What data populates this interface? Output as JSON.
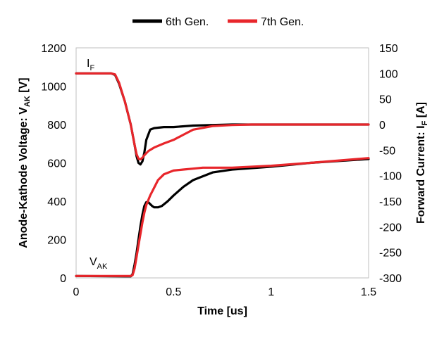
{
  "chart_data": {
    "type": "line",
    "xlabel": "Time [us]",
    "ylabel_left": {
      "pre": "Anode-Kathode  Voltage: V",
      "sub": "AK",
      "post": " [V]"
    },
    "ylabel_right": {
      "pre": "Forward Current: I",
      "sub": "F",
      "post": " [A]"
    },
    "xlim": [
      0,
      1.5
    ],
    "ylim_left": [
      0,
      1200
    ],
    "ylim_right": [
      -300,
      150
    ],
    "xticks": [
      0,
      0.5,
      1,
      1.5
    ],
    "xtick_labels": [
      "0",
      "0.5",
      "1",
      "1.5"
    ],
    "yticks_left": [
      0,
      200,
      400,
      600,
      800,
      1000,
      1200
    ],
    "yticks_left_labels": [
      "0",
      "200",
      "400",
      "600",
      "800",
      "1000",
      "1200"
    ],
    "yticks_right": [
      -300,
      -250,
      -200,
      -150,
      -100,
      -50,
      0,
      50,
      100,
      150
    ],
    "yticks_right_labels": [
      "-300",
      "-250",
      "-200",
      "-150",
      "-100",
      "-50",
      "0",
      "50",
      "100",
      "150"
    ],
    "legend": {
      "position": "top",
      "entries": [
        "6th Gen.",
        "7th Gen."
      ]
    },
    "annotations": {
      "current": {
        "main": "I",
        "sub": "F"
      },
      "voltage": {
        "main": "V",
        "sub": "AK"
      }
    },
    "grid": false,
    "series": [
      {
        "name": "6th Gen.",
        "color": "#000000",
        "axis": "right",
        "x": [
          0,
          0.18,
          0.2,
          0.22,
          0.25,
          0.28,
          0.3,
          0.31,
          0.32,
          0.33,
          0.34,
          0.35,
          0.36,
          0.38,
          0.4,
          0.45,
          0.5,
          0.6,
          0.7,
          0.8,
          0.9,
          1.0,
          1.2,
          1.5
        ],
        "y": [
          100,
          100,
          97,
          80,
          45,
          0,
          -40,
          -62,
          -75,
          -78,
          -72,
          -55,
          -30,
          -10,
          -7,
          -5,
          -5,
          -2,
          -1,
          0,
          0,
          0,
          0,
          0
        ]
      },
      {
        "name": "7th Gen.",
        "color": "#e8262b",
        "axis": "right",
        "x": [
          0,
          0.18,
          0.2,
          0.22,
          0.25,
          0.28,
          0.3,
          0.31,
          0.32,
          0.33,
          0.34,
          0.35,
          0.37,
          0.4,
          0.45,
          0.5,
          0.55,
          0.6,
          0.7,
          0.8,
          0.9,
          1.0,
          1.2,
          1.5
        ],
        "y": [
          100,
          100,
          98,
          82,
          45,
          0,
          -40,
          -58,
          -67,
          -68,
          -65,
          -60,
          -52,
          -45,
          -37,
          -30,
          -20,
          -10,
          -3,
          -1,
          0,
          0,
          0,
          0
        ]
      },
      {
        "name": "6th Gen.",
        "color": "#000000",
        "axis": "left",
        "x": [
          0,
          0.25,
          0.28,
          0.29,
          0.3,
          0.31,
          0.32,
          0.33,
          0.34,
          0.35,
          0.36,
          0.37,
          0.38,
          0.39,
          0.4,
          0.42,
          0.44,
          0.47,
          0.5,
          0.55,
          0.6,
          0.7,
          0.8,
          1.0,
          1.2,
          1.5
        ],
        "y": [
          10,
          8,
          8,
          20,
          70,
          130,
          200,
          270,
          330,
          375,
          395,
          395,
          385,
          375,
          368,
          368,
          375,
          400,
          430,
          475,
          510,
          550,
          565,
          580,
          600,
          620
        ]
      },
      {
        "name": "7th Gen.",
        "color": "#e8262b",
        "axis": "left",
        "x": [
          0,
          0.25,
          0.28,
          0.29,
          0.3,
          0.31,
          0.32,
          0.33,
          0.34,
          0.35,
          0.36,
          0.38,
          0.4,
          0.42,
          0.45,
          0.5,
          0.55,
          0.6,
          0.65,
          0.7,
          0.8,
          1.0,
          1.2,
          1.5
        ],
        "y": [
          10,
          10,
          10,
          15,
          50,
          110,
          170,
          230,
          290,
          340,
          380,
          430,
          470,
          510,
          540,
          560,
          565,
          570,
          575,
          575,
          575,
          585,
          600,
          625
        ]
      }
    ]
  }
}
